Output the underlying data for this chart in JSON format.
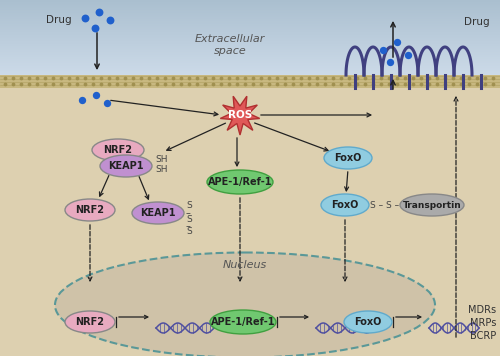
{
  "bg_extracellular_top": "#b8ccd8",
  "bg_extracellular_bot": "#ccdae6",
  "bg_cell": "#ddd0b0",
  "membrane_color": "#c8b888",
  "nucleus_bg": "#cfc0a0",
  "nucleus_ec": "#5a9898",
  "extracellular_label": "Extracellular\nspace",
  "nucleus_label": "Nucleus",
  "drug_label": "Drug",
  "labels_right": [
    "MDRs",
    "MRPs",
    "BCRP"
  ],
  "ros_color": "#e05858",
  "ros_ec": "#b03030",
  "nrf2_color": "#e8aac0",
  "keap1_color": "#c090d0",
  "ape1_color": "#70c870",
  "foxo_color": "#90cce0",
  "transportin_color": "#aaaaaa",
  "dot_color": "#2060cc",
  "transporter_color": "#404080",
  "dna_color": "#5050a0",
  "arrow_color": "#222222",
  "text_color": "#333333"
}
